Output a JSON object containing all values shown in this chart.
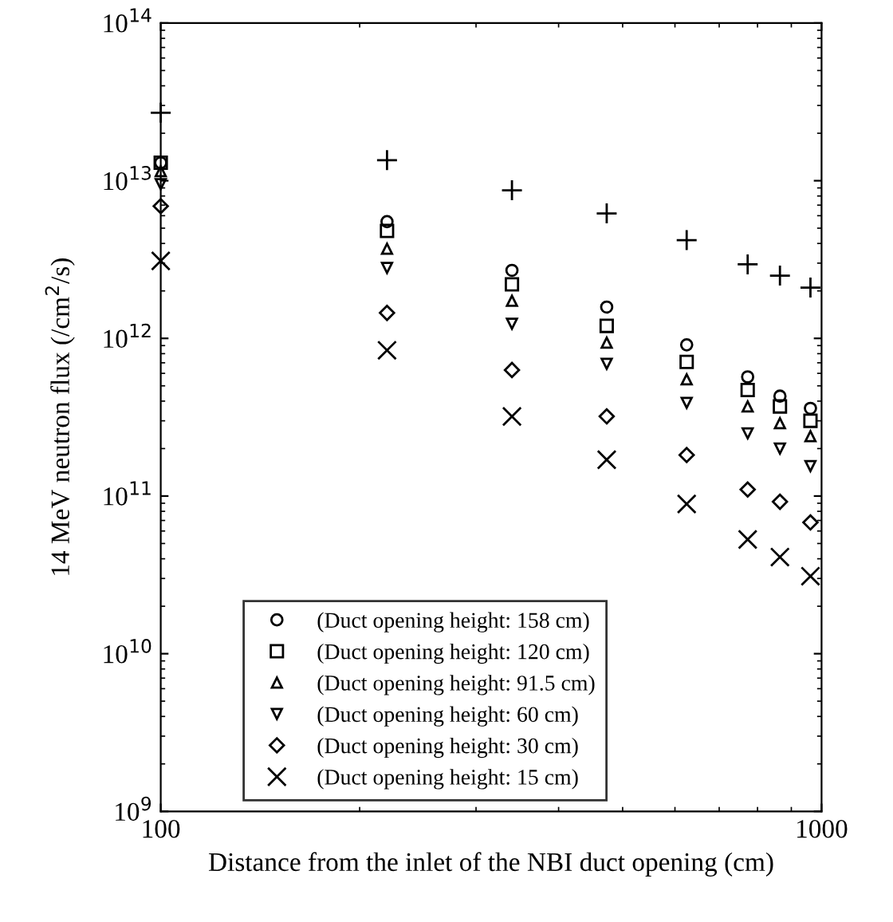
{
  "chart_data": {
    "type": "scatter",
    "xlabel": "Distance from the inlet of the NBI duct opening (cm)",
    "ylabel": "14 MeV neutron flux (/cm$^{2}$/s)",
    "x": [
      100,
      220,
      340,
      473,
      625,
      773,
      865,
      962
    ],
    "series": [
      {
        "name": "(Duct opening height: 158 cm)",
        "color": "#000000",
        "marker": "circle",
        "values": [
          13000000000000.0,
          5500000000000.0,
          2700000000000.0,
          1580000000000.0,
          910000000000.0,
          570000000000.0,
          430000000000.0,
          360000000000.0
        ]
      },
      {
        "name": "(Duct opening height: 120 cm)",
        "color": "#000000",
        "marker": "square",
        "values": [
          13000000000000.0,
          4800000000000.0,
          2200000000000.0,
          1200000000000.0,
          710000000000.0,
          470000000000.0,
          370000000000.0,
          300000000000.0
        ]
      },
      {
        "name": "(Duct opening height: 91.5 cm)",
        "color": "#000000",
        "marker": "triangle",
        "values": [
          11500000000000.0,
          3700000000000.0,
          1730000000000.0,
          940000000000.0,
          550000000000.0,
          370000000000.0,
          290000000000.0,
          240000000000.0
        ]
      },
      {
        "name": "(Duct opening height: 60 cm)",
        "color": "#000000",
        "marker": "triangle_down",
        "values": [
          9500000000000.0,
          2800000000000.0,
          1240000000000.0,
          690000000000.0,
          390000000000.0,
          250000000000.0,
          200000000000.0,
          155000000000.0
        ]
      },
      {
        "name": "(Duct opening height: 30 cm)",
        "color": "#000000",
        "marker": "diamond",
        "values": [
          6900000000000.0,
          1450000000000.0,
          630000000000.0,
          320000000000.0,
          182000000000.0,
          110000000000.0,
          92000000000.0,
          68000000000.0
        ]
      },
      {
        "name": "(Duct opening height: 15 cm)",
        "color": "#000000",
        "marker": "cross",
        "values": [
          3100000000000.0,
          840000000000.0,
          320000000000.0,
          170000000000.0,
          89000000000.0,
          53000000000.0,
          41000000000.0,
          31000000000.0
        ]
      },
      {
        "color": "#000000",
        "marker": "plus",
        "values": [
          27000000000000.0,
          13500000000000.0,
          8700000000000.0,
          6200000000000.0,
          4200000000000.0,
          2950000000000.0,
          2500000000000.0,
          2100000000000.0
        ]
      }
    ],
    "log": "xy",
    "xlim": [
      100,
      1000
    ],
    "xticks": [
      100,
      1000
    ],
    "ylim": [
      1000000000.0,
      100000000000000.0
    ],
    "yticks": [
      {
        "value": 1000000000.0,
        "label": "10$^{9}$"
      },
      {
        "value": 10000000000.0,
        "label": "10$^{10}$"
      },
      {
        "value": 100000000000.0,
        "label": "10$^{11}$"
      },
      {
        "value": 1000000000000.0,
        "label": "10$^{12}$"
      },
      {
        "value": 10000000000000.0,
        "label": "10$^{13}$"
      },
      {
        "value": 100000000000000.0,
        "label": "10$^{14}$"
      }
    ],
    "grid": false,
    "legend": "bottom"
  }
}
